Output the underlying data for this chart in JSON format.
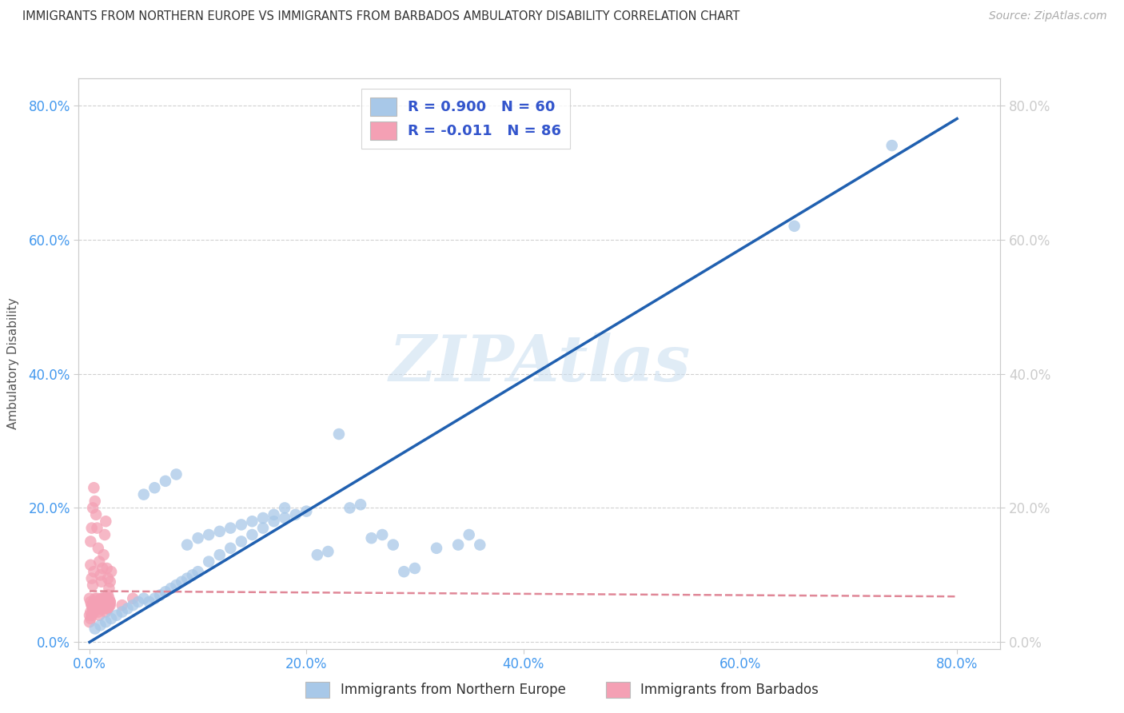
{
  "title": "IMMIGRANTS FROM NORTHERN EUROPE VS IMMIGRANTS FROM BARBADOS AMBULATORY DISABILITY CORRELATION CHART",
  "source": "Source: ZipAtlas.com",
  "ylabel": "Ambulatory Disability",
  "xlabel_blue": "Immigrants from Northern Europe",
  "xlabel_pink": "Immigrants from Barbados",
  "watermark": "ZIPAtlas",
  "legend_blue_r": "R = 0.900",
  "legend_blue_n": "N = 60",
  "legend_pink_r": "R = -0.011",
  "legend_pink_n": "N = 86",
  "blue_color": "#a8c8e8",
  "pink_color": "#f4a0b4",
  "blue_line_color": "#2060b0",
  "pink_line_color": "#e08898",
  "tick_color": "#4499ee",
  "xlim": [
    -0.01,
    0.84
  ],
  "ylim": [
    -0.01,
    0.84
  ],
  "xticks": [
    0.0,
    0.2,
    0.4,
    0.6,
    0.8
  ],
  "yticks": [
    0.0,
    0.2,
    0.4,
    0.6,
    0.8
  ],
  "blue_scatter_x": [
    0.005,
    0.01,
    0.015,
    0.02,
    0.025,
    0.03,
    0.035,
    0.04,
    0.045,
    0.05,
    0.055,
    0.06,
    0.065,
    0.07,
    0.075,
    0.08,
    0.085,
    0.09,
    0.095,
    0.1,
    0.11,
    0.12,
    0.13,
    0.14,
    0.15,
    0.16,
    0.17,
    0.18,
    0.19,
    0.2,
    0.05,
    0.06,
    0.07,
    0.08,
    0.09,
    0.1,
    0.11,
    0.12,
    0.13,
    0.14,
    0.15,
    0.16,
    0.17,
    0.18,
    0.21,
    0.22,
    0.23,
    0.24,
    0.25,
    0.26,
    0.27,
    0.28,
    0.29,
    0.3,
    0.32,
    0.34,
    0.35,
    0.36,
    0.65,
    0.74
  ],
  "blue_scatter_y": [
    0.02,
    0.025,
    0.03,
    0.035,
    0.04,
    0.045,
    0.05,
    0.055,
    0.06,
    0.065,
    0.06,
    0.065,
    0.07,
    0.075,
    0.08,
    0.085,
    0.09,
    0.095,
    0.1,
    0.105,
    0.12,
    0.13,
    0.14,
    0.15,
    0.16,
    0.17,
    0.18,
    0.185,
    0.19,
    0.195,
    0.22,
    0.23,
    0.24,
    0.25,
    0.145,
    0.155,
    0.16,
    0.165,
    0.17,
    0.175,
    0.18,
    0.185,
    0.19,
    0.2,
    0.13,
    0.135,
    0.31,
    0.2,
    0.205,
    0.155,
    0.16,
    0.145,
    0.105,
    0.11,
    0.14,
    0.145,
    0.16,
    0.145,
    0.62,
    0.74
  ],
  "pink_scatter_x": [
    0.0,
    0.001,
    0.002,
    0.003,
    0.004,
    0.005,
    0.006,
    0.007,
    0.008,
    0.009,
    0.01,
    0.011,
    0.012,
    0.013,
    0.014,
    0.015,
    0.016,
    0.017,
    0.018,
    0.019,
    0.0,
    0.001,
    0.002,
    0.003,
    0.004,
    0.005,
    0.006,
    0.007,
    0.008,
    0.009,
    0.01,
    0.011,
    0.012,
    0.013,
    0.014,
    0.015,
    0.016,
    0.017,
    0.018,
    0.019,
    0.0,
    0.001,
    0.002,
    0.003,
    0.004,
    0.005,
    0.006,
    0.007,
    0.008,
    0.009,
    0.01,
    0.011,
    0.012,
    0.013,
    0.014,
    0.015,
    0.016,
    0.017,
    0.018,
    0.019,
    0.001,
    0.002,
    0.003,
    0.004,
    0.005,
    0.006,
    0.007,
    0.008,
    0.009,
    0.01,
    0.011,
    0.012,
    0.013,
    0.014,
    0.015,
    0.016,
    0.017,
    0.018,
    0.019,
    0.02,
    0.001,
    0.002,
    0.003,
    0.004,
    0.03,
    0.04
  ],
  "pink_scatter_y": [
    0.03,
    0.035,
    0.04,
    0.045,
    0.05,
    0.055,
    0.06,
    0.05,
    0.045,
    0.04,
    0.055,
    0.06,
    0.065,
    0.05,
    0.055,
    0.06,
    0.065,
    0.07,
    0.055,
    0.06,
    0.065,
    0.06,
    0.055,
    0.05,
    0.06,
    0.065,
    0.055,
    0.06,
    0.05,
    0.055,
    0.06,
    0.065,
    0.06,
    0.055,
    0.065,
    0.055,
    0.06,
    0.05,
    0.055,
    0.06,
    0.04,
    0.045,
    0.055,
    0.05,
    0.045,
    0.06,
    0.05,
    0.065,
    0.06,
    0.05,
    0.055,
    0.05,
    0.065,
    0.06,
    0.055,
    0.045,
    0.06,
    0.05,
    0.065,
    0.055,
    0.15,
    0.17,
    0.2,
    0.23,
    0.21,
    0.19,
    0.17,
    0.14,
    0.12,
    0.1,
    0.09,
    0.11,
    0.13,
    0.16,
    0.18,
    0.11,
    0.095,
    0.08,
    0.09,
    0.105,
    0.115,
    0.095,
    0.085,
    0.105,
    0.055,
    0.065
  ],
  "blue_trendline_x": [
    0.0,
    0.8
  ],
  "blue_trendline_y": [
    0.0,
    0.78
  ],
  "pink_trendline_x": [
    0.0,
    0.8
  ],
  "pink_trendline_y": [
    0.076,
    0.068
  ]
}
